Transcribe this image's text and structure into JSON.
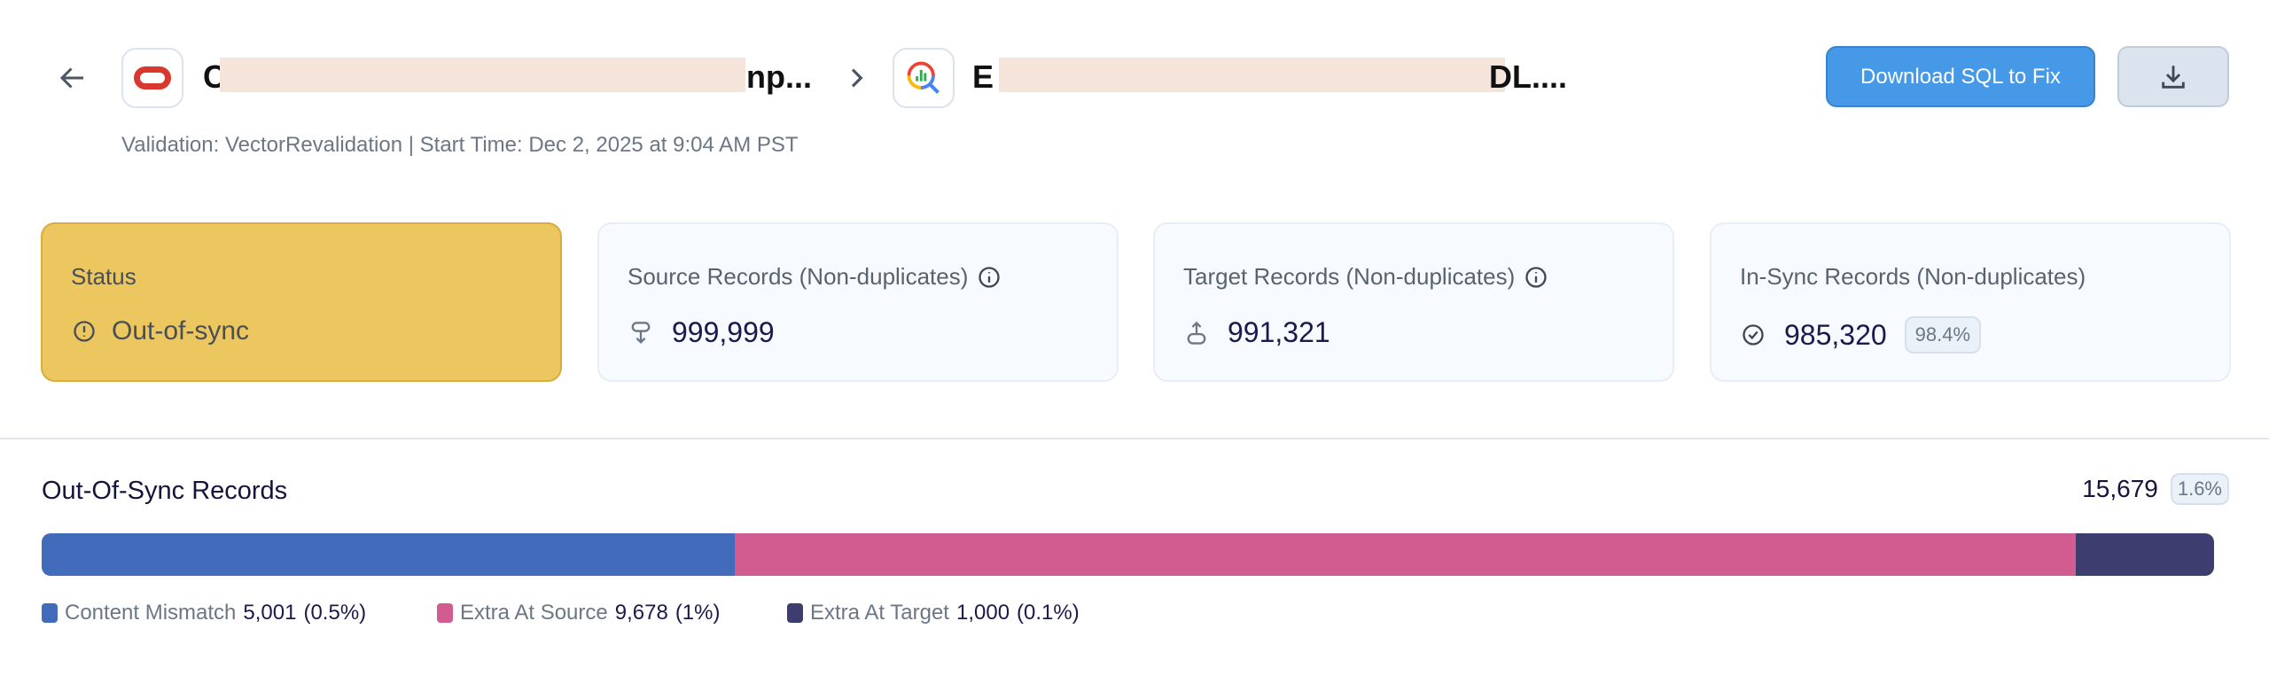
{
  "header": {
    "source_title_start": "C",
    "source_title_end": "np...",
    "target_title_start": "E",
    "target_title_end": "DL....",
    "subtitle": "Validation: VectorRevalidation | Start Time: Dec 2, 2025 at 9:04 AM PST",
    "download_sql_label": "Download SQL to Fix",
    "icons": {
      "back": "arrow-left-icon",
      "source": "oracle-logo-icon",
      "separator": "chevron-right-icon",
      "target": "bigquery-logo-icon",
      "download": "download-icon"
    }
  },
  "cards": {
    "status": {
      "label": "Status",
      "value": "Out-of-sync",
      "icon": "alert-circle-icon",
      "color": "#ecc75f"
    },
    "source": {
      "label": "Source Records (Non-duplicates)",
      "value": "999,999",
      "icon": "source-icon"
    },
    "target": {
      "label": "Target Records (Non-duplicates)",
      "value": "991,321",
      "icon": "target-icon"
    },
    "insync": {
      "label": "In-Sync Records (Non-duplicates)",
      "value": "985,320",
      "percent": "98.4%",
      "icon": "check-circle-icon"
    }
  },
  "out_of_sync": {
    "title": "Out-Of-Sync Records",
    "total": "15,679",
    "percent": "1.6%",
    "segments": [
      {
        "name": "Content Mismatch",
        "count": 5001,
        "count_label": "5,001",
        "pct": "(0.5%)",
        "color": "#436bbb"
      },
      {
        "name": "Extra At Source",
        "count": 9678,
        "count_label": "9,678",
        "pct": "(1%)",
        "color": "#d25c8f"
      },
      {
        "name": "Extra At Target",
        "count": 1000,
        "count_label": "1,000",
        "pct": "(0.1%)",
        "color": "#3e3d70"
      }
    ]
  }
}
